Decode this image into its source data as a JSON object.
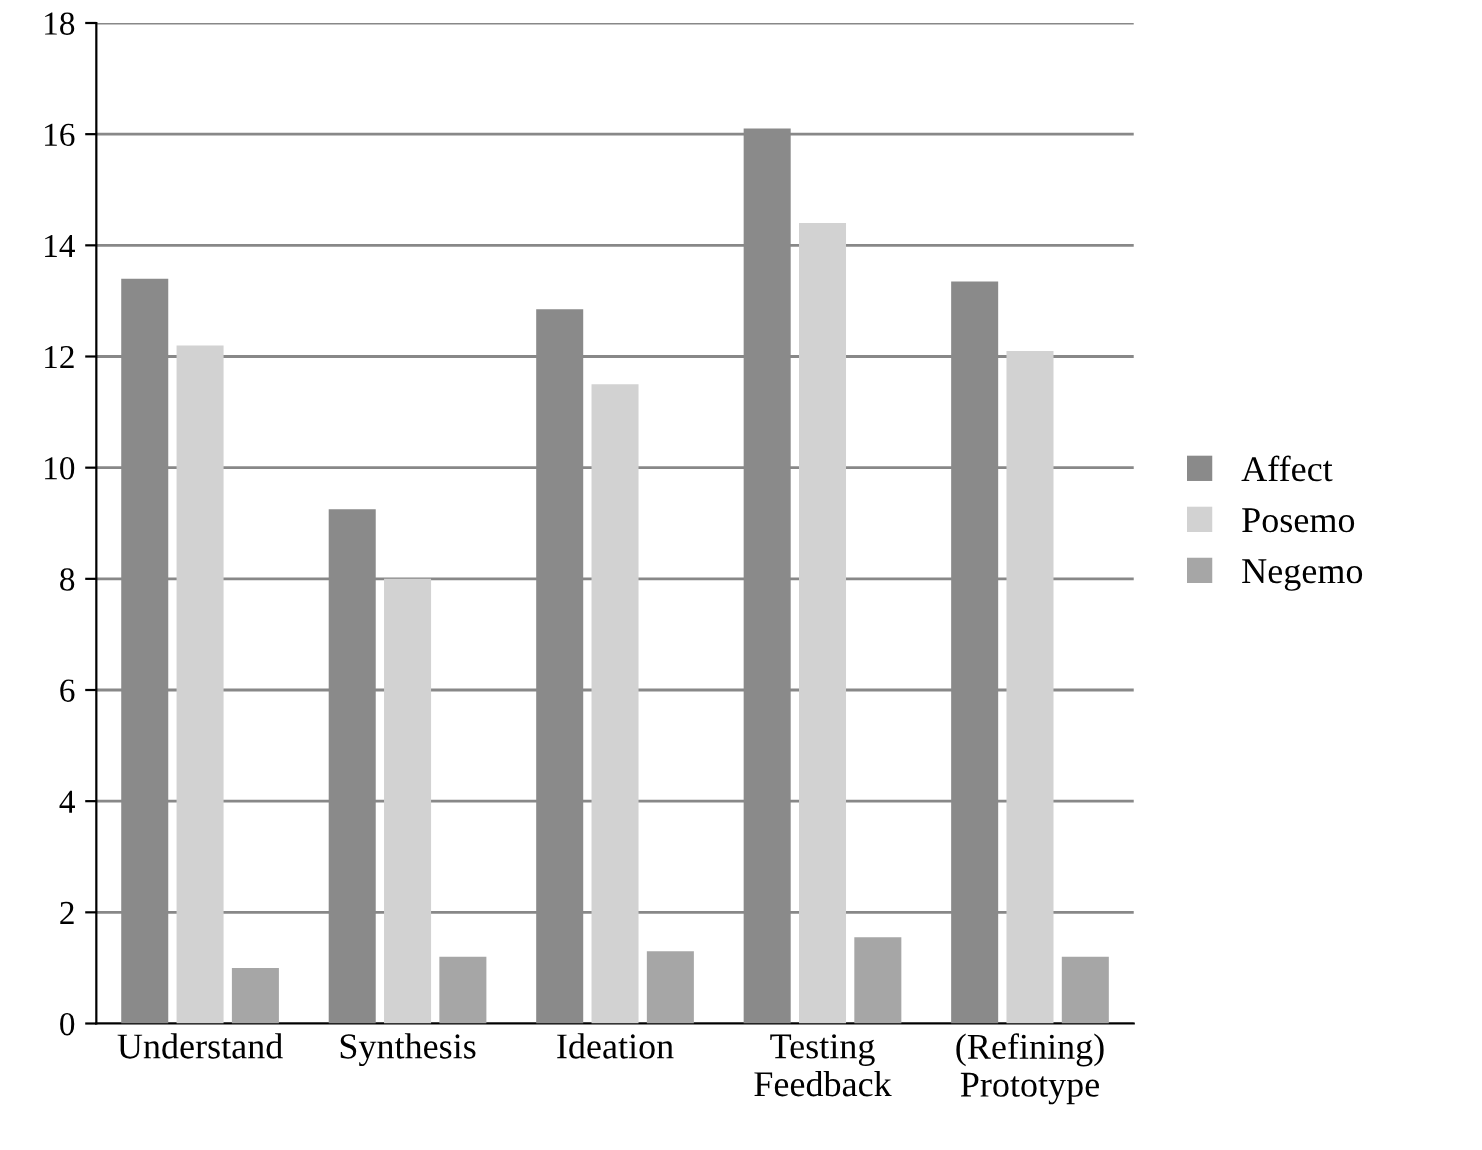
{
  "chart_data": {
    "type": "bar",
    "categories": [
      "Understand",
      "Synthesis",
      "Ideation",
      "Testing\nFeedback",
      "(Refining)\nPrototype"
    ],
    "series": [
      {
        "name": "Affect",
        "color": "#8a8a8a",
        "values": [
          13.4,
          9.25,
          12.85,
          16.1,
          13.35
        ]
      },
      {
        "name": "Posemo",
        "color": "#d2d2d2",
        "values": [
          12.2,
          8.0,
          11.5,
          14.4,
          12.1
        ]
      },
      {
        "name": "Negemo",
        "color": "#a6a6a6",
        "values": [
          1.0,
          1.2,
          1.3,
          1.55,
          1.2
        ]
      }
    ],
    "ylim": [
      0,
      18
    ],
    "yticks": [
      0,
      2,
      4,
      6,
      8,
      10,
      12,
      14,
      16,
      18
    ],
    "grid": "y",
    "legend": "right"
  }
}
